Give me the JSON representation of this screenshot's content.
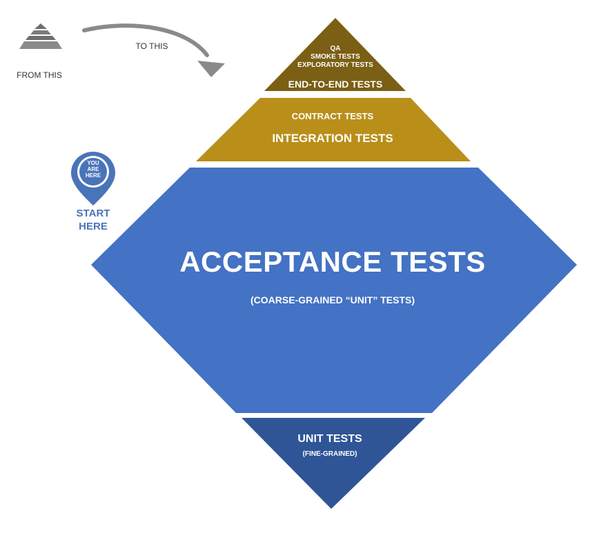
{
  "legend": {
    "from_label": "FROM THIS",
    "to_label": "TO THIS"
  },
  "pin": {
    "pin_text_line1": "YOU",
    "pin_text_line2": "ARE",
    "pin_text_line3": "HERE",
    "start_line1": "START",
    "start_line2": "HERE"
  },
  "layers": {
    "top": {
      "line1": "QA",
      "line2": "SMOKE TESTS",
      "line3": "EXPLORATORY TESTS",
      "main": "END-TO-END  TESTS",
      "color": "#7a5f14"
    },
    "integration": {
      "sub": "CONTRACT TESTS",
      "main": "INTEGRATION  TESTS",
      "color": "#b98f1a"
    },
    "acceptance": {
      "main": "ACCEPTANCE  TESTS",
      "sub": "(COARSE-GRAINED “UNIT” TESTS)",
      "color": "#4472c4"
    },
    "unit": {
      "main": "UNIT TESTS",
      "sub": "(FINE-GRAINED)",
      "color": "#2f5597"
    }
  },
  "colors": {
    "pin": "#4a74b8",
    "arrow": "#8a8a8a",
    "small_pyramid": "#6f6f6f"
  }
}
